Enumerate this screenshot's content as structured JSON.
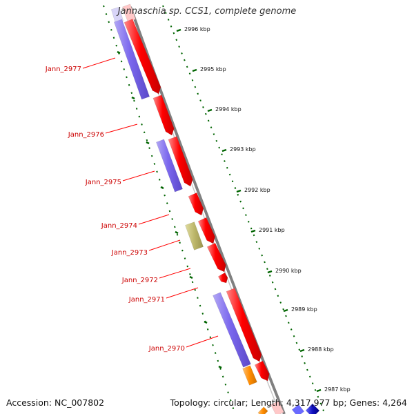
{
  "title": "Jannaschia sp. CCS1, complete genome",
  "footer": {
    "accession": "Accession: NC_007802",
    "summary": "Topology: circular; Length: 4,317,977 bp; Genes: 4,264"
  },
  "colors": {
    "forward_cds": "#ff0000",
    "reverse_cds": "#7b68ee",
    "rna": "#bdb76b",
    "other": "#ff8c00",
    "backbone": "#808080",
    "tick_major": "#006400",
    "label_line": "#ff0000"
  },
  "scale_labels": [
    "2996 kbp",
    "2995 kbp",
    "2994 kbp",
    "2993 kbp",
    "2992 kbp",
    "2991 kbp",
    "2990 kbp",
    "2989 kbp",
    "2988 kbp",
    "2987 kbp"
  ],
  "gene_labels": [
    "Jann_2977",
    "Jann_2976",
    "Jann_2975",
    "Jann_2974",
    "Jann_2973",
    "Jann_2972",
    "Jann_2971",
    "Jann_2970"
  ]
}
